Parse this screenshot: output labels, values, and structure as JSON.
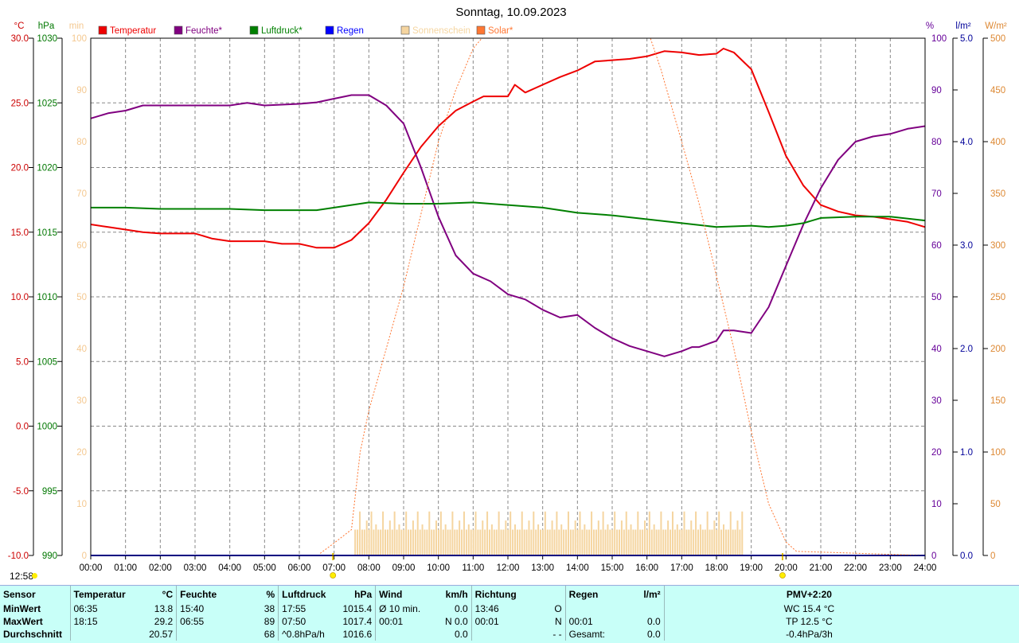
{
  "chart_data": {
    "type": "line",
    "title": "Sonntag, 10.09.2023",
    "x_range": [
      "00:00",
      "24:00"
    ],
    "x_ticks": [
      "00:00",
      "01:00",
      "02:00",
      "03:00",
      "04:00",
      "05:00",
      "06:00",
      "07:00",
      "08:00",
      "09:00",
      "10:00",
      "11:00",
      "12:00",
      "13:00",
      "14:00",
      "15:00",
      "16:00",
      "17:00",
      "18:00",
      "19:00",
      "20:00",
      "21:00",
      "22:00",
      "23:00",
      "24:00"
    ],
    "grid": true,
    "axes": {
      "temperature": {
        "unit": "°C",
        "range": [
          -10,
          30
        ],
        "ticks": [
          "30.0",
          "25.0",
          "20.0",
          "15.0",
          "10.0",
          "5.0",
          "0.0",
          "-5.0",
          "-10.0"
        ],
        "color": "#cc0000"
      },
      "pressure": {
        "unit": "hPa",
        "range": [
          990,
          1030
        ],
        "ticks": [
          "1030",
          "1025",
          "1020",
          "1015",
          "1010",
          "1005",
          "1000",
          "995",
          "990"
        ],
        "color": "#007700"
      },
      "sunshine": {
        "unit": "min",
        "range": [
          0,
          100
        ],
        "ticks": [
          "100",
          "90",
          "80",
          "70",
          "60",
          "50",
          "40",
          "30",
          "20",
          "10",
          "0"
        ],
        "color": "#f4c890"
      },
      "humidity": {
        "unit": "%",
        "range": [
          0,
          100
        ],
        "ticks": [
          "100",
          "90",
          "80",
          "70",
          "60",
          "50",
          "40",
          "30",
          "20",
          "10",
          "0"
        ],
        "color": "#660099"
      },
      "rain": {
        "unit": "l/m²",
        "range": [
          0,
          5
        ],
        "ticks": [
          "5.0",
          "4.0",
          "3.0",
          "2.0",
          "1.0",
          "0.0"
        ],
        "color": "#000099"
      },
      "solar": {
        "unit": "W/m²",
        "range": [
          0,
          500
        ],
        "ticks": [
          "500",
          "450",
          "400",
          "350",
          "300",
          "250",
          "200",
          "150",
          "100",
          "50",
          "0"
        ],
        "color": "#dd8833"
      }
    },
    "legend": [
      {
        "name": "Temperatur",
        "color": "#ee0000"
      },
      {
        "name": "Feuchte*",
        "color": "#800080"
      },
      {
        "name": "Luftdruck*",
        "color": "#008000"
      },
      {
        "name": "Regen",
        "color": "#0000ff"
      },
      {
        "name": "Sonnenschein",
        "color": "#f5d5a0"
      },
      {
        "name": "Solar*",
        "color": "#ff7733"
      }
    ],
    "series": [
      {
        "name": "Temperatur",
        "axis": "temperature",
        "color": "#ee0000",
        "x": [
          0,
          0.5,
          1,
          1.5,
          2,
          3,
          3.5,
          4,
          5,
          5.5,
          6,
          6.5,
          7,
          7.5,
          8,
          8.5,
          9,
          9.5,
          10,
          10.5,
          11,
          11.3,
          12,
          12.2,
          12.5,
          13,
          13.5,
          14,
          14.5,
          15,
          15.5,
          16,
          16.5,
          17,
          17.5,
          18,
          18.2,
          18.5,
          19,
          19.5,
          20,
          20.5,
          21,
          21.5,
          22,
          22.5,
          23,
          23.5,
          24
        ],
        "y": [
          15.6,
          15.4,
          15.2,
          15.0,
          14.9,
          14.9,
          14.5,
          14.3,
          14.3,
          14.1,
          14.1,
          13.8,
          13.8,
          14.4,
          15.7,
          17.5,
          19.6,
          21.6,
          23.2,
          24.4,
          25.1,
          25.5,
          25.5,
          26.4,
          25.8,
          26.4,
          27.0,
          27.5,
          28.2,
          28.3,
          28.4,
          28.6,
          29.0,
          28.9,
          28.7,
          28.8,
          29.2,
          28.9,
          27.6,
          24.3,
          20.9,
          18.6,
          17.1,
          16.6,
          16.3,
          16.2,
          16.0,
          15.8,
          15.4
        ]
      },
      {
        "name": "Feuchte*",
        "axis": "humidity",
        "color": "#800080",
        "x": [
          0,
          0.5,
          1,
          1.5,
          2,
          3,
          4,
          4.5,
          5,
          6,
          6.5,
          7,
          7.5,
          8,
          8.5,
          9,
          9.5,
          10,
          10.5,
          11,
          11.5,
          12,
          12.5,
          13,
          13.5,
          14,
          14.5,
          15,
          15.5,
          16,
          16.5,
          17,
          17.3,
          17.5,
          18,
          18.2,
          18.5,
          19,
          19.5,
          20,
          20.5,
          21,
          21.5,
          22,
          22.5,
          23,
          23.5,
          24
        ],
        "y": [
          84.5,
          85.5,
          86,
          87,
          87,
          87,
          87,
          87.5,
          87,
          87.3,
          87.6,
          88.3,
          89,
          89,
          87,
          83.5,
          75,
          65.5,
          58,
          54.5,
          53,
          50.5,
          49.5,
          47.5,
          46,
          46.5,
          44,
          42,
          40.5,
          39.5,
          38.5,
          39.5,
          40.3,
          40.3,
          41.5,
          43.5,
          43.5,
          43,
          48,
          56,
          64,
          71,
          76.5,
          80,
          81,
          81.5,
          82.5,
          83
        ]
      },
      {
        "name": "Luftdruck*",
        "axis": "pressure",
        "color": "#008000",
        "x": [
          0,
          1,
          2,
          3,
          4,
          5,
          6,
          6.5,
          7,
          7.5,
          8,
          9,
          10,
          11,
          12,
          13,
          14,
          15,
          16,
          17,
          18,
          19,
          19.5,
          20,
          20.5,
          21,
          22,
          23,
          24
        ],
        "y": [
          1016.9,
          1016.9,
          1016.8,
          1016.8,
          1016.8,
          1016.7,
          1016.7,
          1016.7,
          1016.9,
          1017.1,
          1017.3,
          1017.2,
          1017.2,
          1017.3,
          1017.1,
          1016.9,
          1016.5,
          1016.3,
          1016.0,
          1015.7,
          1015.4,
          1015.5,
          1015.4,
          1015.5,
          1015.7,
          1016.1,
          1016.2,
          1016.2,
          1015.9
        ]
      },
      {
        "name": "Regen",
        "axis": "rain",
        "color": "#0000ff",
        "x": [
          0,
          24
        ],
        "y": [
          0,
          0
        ]
      },
      {
        "name": "Solar*",
        "axis": "solar",
        "color": "#ff7733",
        "x": [
          6.6,
          7,
          7.5,
          7.75,
          8,
          8.5,
          9,
          9.5,
          10,
          10.5,
          11,
          11.25,
          12,
          13,
          14,
          15,
          16,
          16.1,
          16.4,
          17,
          17.5,
          18,
          18.5,
          19,
          19.5,
          20,
          20.3,
          24
        ],
        "y": [
          2,
          12,
          25,
          100,
          140,
          200,
          260,
          330,
          400,
          450,
          490,
          500,
          500,
          500,
          500,
          500,
          500,
          500,
          470,
          400,
          340,
          270,
          200,
          120,
          50,
          13,
          4,
          0
        ]
      },
      {
        "name": "Sonnenschein",
        "axis": "sunshine",
        "color": "#f5d5a0",
        "type": "bar",
        "x_start": "07:35",
        "x_end": "18:45",
        "typical_value_min": 5
      }
    ],
    "annotations": {
      "sunrise": "06:58",
      "sunset": "19:54",
      "generated_time": "12:58"
    }
  },
  "stats": {
    "headers": {
      "sensor": "Sensor",
      "temperature": "Temperatur",
      "temperature_unit": "°C",
      "humidity": "Feuchte",
      "humidity_unit": "%",
      "pressure": "Luftdruck",
      "pressure_unit": "hPa",
      "wind": "Wind",
      "wind_unit": "km/h",
      "direction": "Richtung",
      "rain": "Regen",
      "rain_unit": "l/m²",
      "pmv": "PMV+2:20"
    },
    "rows": [
      {
        "label": "MinWert",
        "temp_time": "06:35",
        "temp_val": "13.8",
        "hum_time": "15:40",
        "hum_val": "38",
        "pres_time": "17:55",
        "pres_val": "1015.4",
        "wind_time": "Ø 10 min.",
        "wind_val": "0.0",
        "dir_time": "13:46",
        "dir_val": "O",
        "rain_time": "",
        "rain_val": "",
        "extra": "WC 15.4 °C"
      },
      {
        "label": "MaxWert",
        "temp_time": "18:15",
        "temp_val": "29.2",
        "hum_time": "06:55",
        "hum_val": "89",
        "pres_time": "07:50",
        "pres_val": "1017.4",
        "wind_time": "00:01",
        "wind_val": "N 0.0",
        "dir_time": "00:01",
        "dir_val": "N",
        "rain_time": "00:01",
        "rain_val": "0.0",
        "extra": "TP 12.5 °C"
      },
      {
        "label": "Durchschnitt",
        "temp_time": "",
        "temp_val": "20.57",
        "hum_time": "",
        "hum_val": "68",
        "pres_time": "^0.8hPa/h",
        "pres_val": "1016.6",
        "wind_time": "",
        "wind_val": "0.0",
        "dir_time": "",
        "dir_val": "- -",
        "rain_time": "Gesamt:",
        "rain_val": "0.0",
        "extra": "-0.4hPa/3h"
      }
    ]
  }
}
